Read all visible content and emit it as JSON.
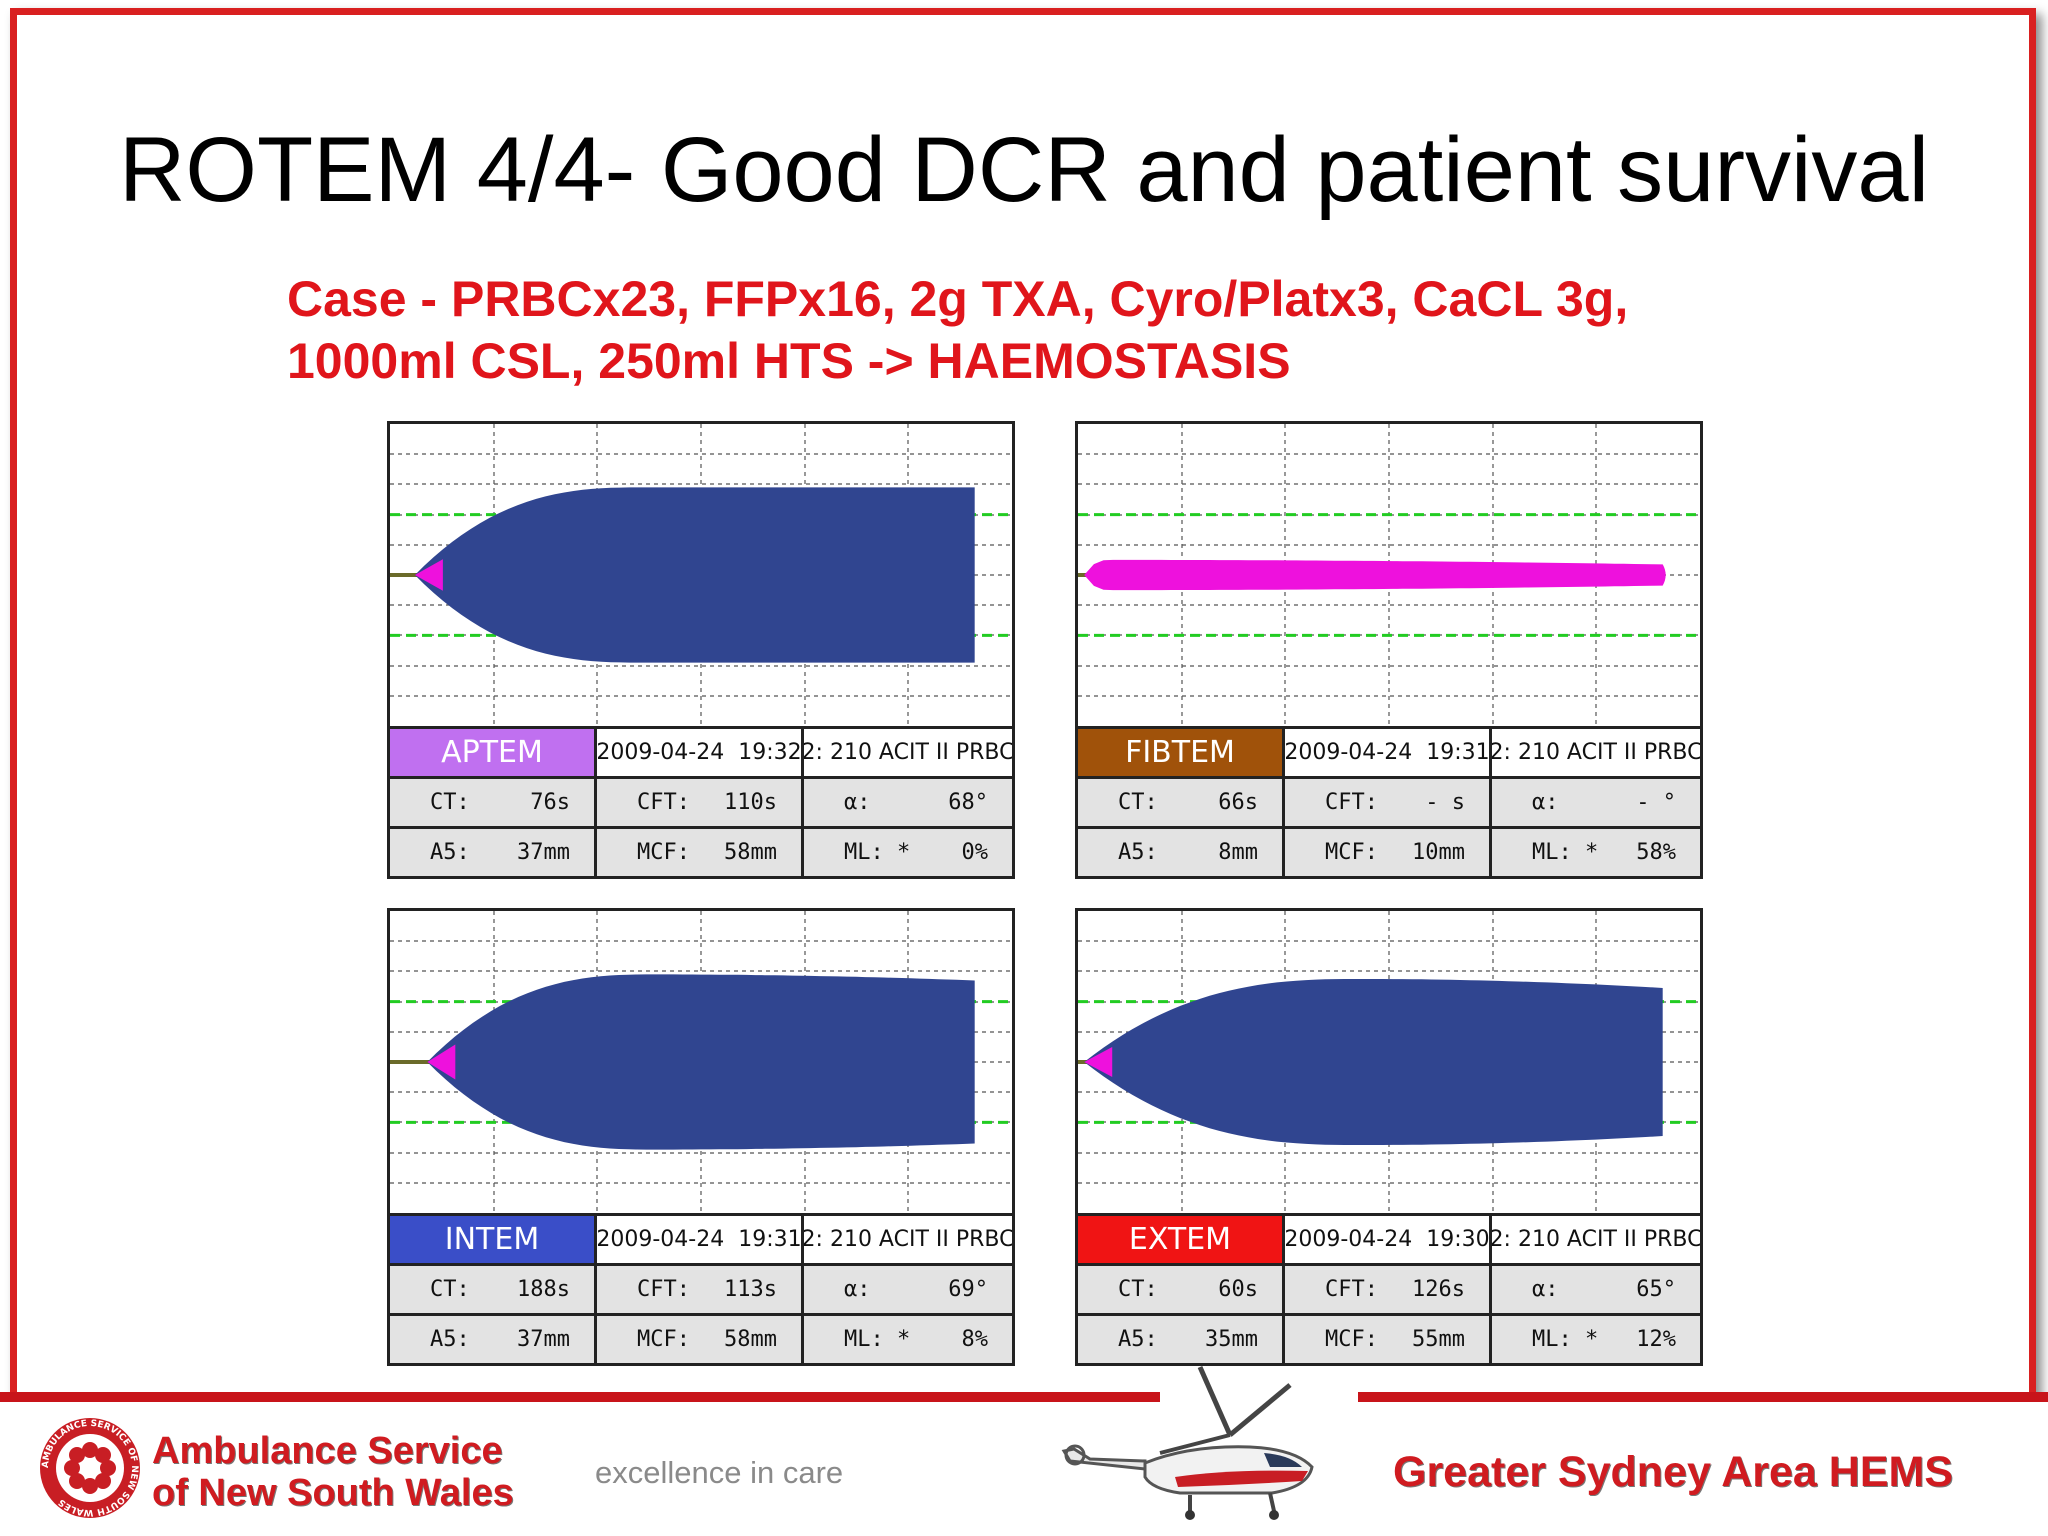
{
  "slide": {
    "title": "ROTEM 4/4- Good DCR and patient survival",
    "subtitle_line1": "Case - PRBCx23, FFPx16, 2g TXA, Cyro/Platx3, CaCL 3g,",
    "subtitle_line2": "1000ml CSL, 250ml HTS -> HAEMOSTASIS"
  },
  "colors": {
    "frame": "#d92020",
    "subtitle": "#e0151b",
    "trace_fill": "#304590",
    "trace_start": "#ee11dd",
    "reference_line": "#22cc22",
    "baseline": "#6b6b2a",
    "grid": "#555555"
  },
  "chart_data": [
    {
      "type": "area",
      "assay": "APTEM",
      "assay_color": "#c070f0",
      "date": "2009-04-24",
      "time": "19:32",
      "channel": "2: 210 ACIT II PRBC",
      "metrics": {
        "ct": {
          "label": "CT:",
          "value": "76s"
        },
        "cft": {
          "label": "CFT:",
          "value": "110s"
        },
        "alpha": {
          "label": "α:",
          "value": "68°"
        },
        "a5": {
          "label": "A5:",
          "value": "37mm"
        },
        "mcf": {
          "label": "MCF:",
          "value": "58mm"
        },
        "ml": {
          "label": "ML: *",
          "value": "0%"
        }
      },
      "trace": {
        "ct_fraction": 0.04,
        "rise_fraction": 0.4,
        "amplitude_mm": 58,
        "final_amplitude_mm": 58,
        "end_fraction": 0.94,
        "start_spike_fraction": 0.18
      }
    },
    {
      "type": "area",
      "assay": "FIBTEM",
      "assay_color": "#a0520a",
      "date": "2009-04-24",
      "time": "19:31",
      "channel": "2: 210 ACIT II PRBC",
      "metrics": {
        "ct": {
          "label": "CT:",
          "value": "66s"
        },
        "cft": {
          "label": "CFT:",
          "value": "- s"
        },
        "alpha": {
          "label": "α:",
          "value": "- °"
        },
        "a5": {
          "label": "A5:",
          "value": "8mm"
        },
        "mcf": {
          "label": "MCF:",
          "value": "10mm"
        },
        "ml": {
          "label": "ML: *",
          "value": "58%"
        }
      },
      "trace": {
        "ct_fraction": 0.01,
        "rise_fraction": 0.05,
        "amplitude_mm": 10,
        "final_amplitude_mm": 7,
        "end_fraction": 0.94,
        "all_magenta": true
      }
    },
    {
      "type": "area",
      "assay": "INTEM",
      "assay_color": "#3a4ec8",
      "date": "2009-04-24",
      "time": "19:31",
      "channel": "2: 210 ACIT II PRBC",
      "metrics": {
        "ct": {
          "label": "CT:",
          "value": "188s"
        },
        "cft": {
          "label": "CFT:",
          "value": "113s"
        },
        "alpha": {
          "label": "α:",
          "value": "69°"
        },
        "a5": {
          "label": "A5:",
          "value": "37mm"
        },
        "mcf": {
          "label": "MCF:",
          "value": "58mm"
        },
        "ml": {
          "label": "ML: *",
          "value": "8%"
        }
      },
      "trace": {
        "ct_fraction": 0.06,
        "rise_fraction": 0.42,
        "amplitude_mm": 58,
        "final_amplitude_mm": 54,
        "end_fraction": 0.94,
        "start_spike_fraction": 0.2
      }
    },
    {
      "type": "area",
      "assay": "EXTEM",
      "assay_color": "#f01414",
      "date": "2009-04-24",
      "time": "19:30",
      "channel": "2: 210 ACIT II PRBC",
      "metrics": {
        "ct": {
          "label": "CT:",
          "value": "60s"
        },
        "cft": {
          "label": "CFT:",
          "value": "126s"
        },
        "alpha": {
          "label": "α:",
          "value": "65°"
        },
        "a5": {
          "label": "A5:",
          "value": "35mm"
        },
        "mcf": {
          "label": "MCF:",
          "value": "55mm"
        },
        "ml": {
          "label": "ML: *",
          "value": "12%"
        }
      },
      "trace": {
        "ct_fraction": 0.01,
        "rise_fraction": 0.45,
        "amplitude_mm": 55,
        "final_amplitude_mm": 49,
        "end_fraction": 0.94,
        "start_spike_fraction": 0.18
      }
    }
  ],
  "footer": {
    "org_line1": "Ambulance Service",
    "org_line2": "of New South Wales",
    "tagline": "excellence in care",
    "hems": "Greater Sydney Area HEMS",
    "logo_ring_text": "AMBULANCE SERVICE OF NEW SOUTH WALES"
  }
}
